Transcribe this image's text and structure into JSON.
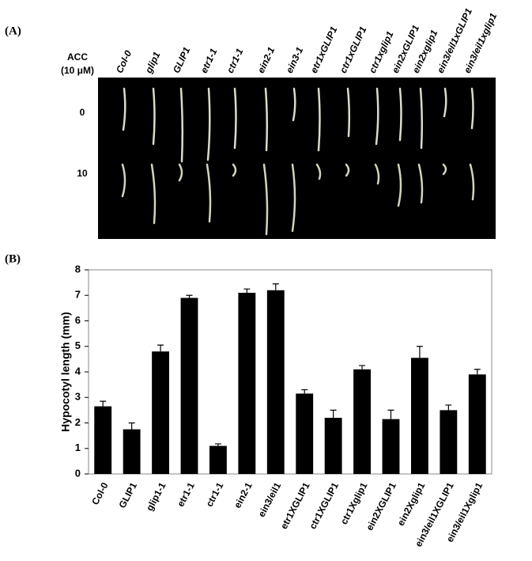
{
  "panel_a": {
    "label": "(A)",
    "treatment_label": [
      "ACC",
      "(10 μM)"
    ],
    "row_labels": [
      "0",
      "10"
    ],
    "genotypes": [
      "Col-0",
      "glip1",
      "GLIP1",
      "etr1-1",
      "ctr1-1",
      "ein2-1",
      "ein3-1",
      "etr1xGLIP1",
      "ctr1xGLIP1",
      "ctr1xglip1",
      "ein2xGLIP1",
      "ein2xglip1",
      "ein3/eil1xGLIP1",
      "ein3/eil1xglip1"
    ]
  },
  "chart_data": {
    "label": "(B)",
    "type": "bar",
    "ylabel": "Hypocotyl length (mm)",
    "categories": [
      "Col-0",
      "GLIP1",
      "glip1-1",
      "etr1-1",
      "ctr1-1",
      "ein2-1",
      "ein3/eil1",
      "etr1XGLIP1",
      "ctr1XGLIP1",
      "ctr1Xglip1",
      "ein2XGLIP1",
      "ein2Xglip1",
      "ein3/eil1XGLIP1",
      "ein3/eil1Xglip1"
    ],
    "values": [
      2.65,
      1.75,
      4.8,
      6.9,
      1.1,
      7.1,
      7.2,
      3.15,
      2.2,
      4.1,
      2.15,
      4.55,
      2.5,
      3.9
    ],
    "errors": [
      0.2,
      0.25,
      0.25,
      0.1,
      0.08,
      0.15,
      0.25,
      0.15,
      0.3,
      0.15,
      0.35,
      0.45,
      0.2,
      0.2
    ],
    "color": "#000000",
    "ylim": [
      0,
      8
    ],
    "yticks": [
      0,
      1,
      2,
      3,
      4,
      5,
      6,
      7,
      8
    ],
    "grid": false
  }
}
